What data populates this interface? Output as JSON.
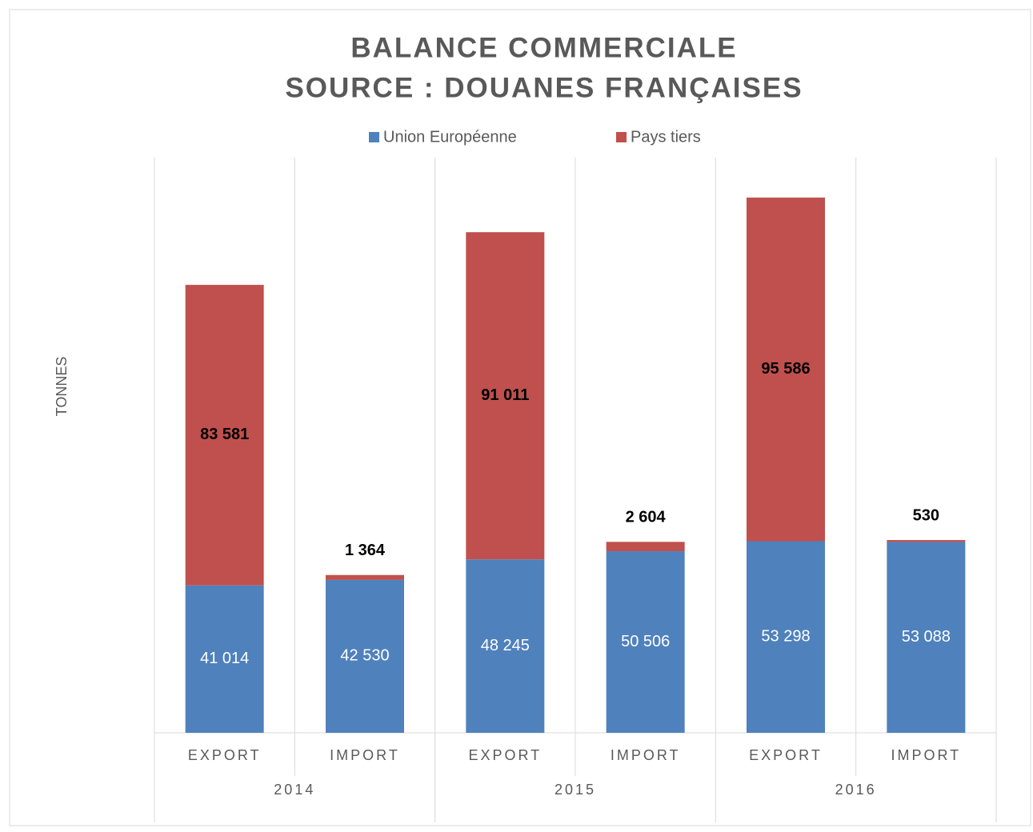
{
  "chart_data": {
    "type": "stacked_bar",
    "title": "BALANCE COMMERCIALE",
    "subtitle": "SOURCE : DOUANES FRANÇAISES",
    "y_label": "TONNES",
    "categories": [
      "EXPORT",
      "IMPORT",
      "EXPORT",
      "IMPORT",
      "EXPORT",
      "IMPORT"
    ],
    "groups": [
      "2014",
      "2015",
      "2016"
    ],
    "series": [
      {
        "name": "Union Européenne",
        "color": "#4f81bd",
        "values": [
          41014,
          42530,
          48245,
          50506,
          53298,
          53088
        ],
        "value_labels": [
          "41 014",
          "42 530",
          "48 245",
          "50 506",
          "53 298",
          "53 088"
        ]
      },
      {
        "name": "Pays tiers",
        "color": "#c0504d",
        "values": [
          83581,
          1364,
          91011,
          2604,
          95586,
          530
        ],
        "value_labels": [
          "83 581",
          "1 364",
          "91 011",
          "2 604",
          "95 586",
          "530"
        ]
      }
    ],
    "ylim": [
      0,
      160000
    ],
    "legend": "top"
  }
}
